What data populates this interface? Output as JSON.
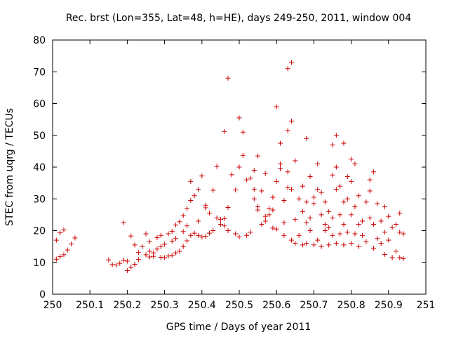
{
  "chart_data": {
    "type": "scatter",
    "title": "Rec. brst (Lon=355, Lat=48, h=HE), days 249-250, 2011, window 004",
    "xlabel": "GPS time / Days of year 2011",
    "ylabel": "STEC from uqrg / TECUs",
    "xlim": [
      250,
      251
    ],
    "ylim": [
      0,
      80
    ],
    "x_ticks": [
      "250",
      "250.1",
      "250.2",
      "250.3",
      "250.4",
      "250.5",
      "250.6",
      "250.7",
      "250.8",
      "250.9",
      "251"
    ],
    "y_ticks": [
      "0",
      "10",
      "20",
      "30",
      "40",
      "50",
      "60",
      "70",
      "80"
    ],
    "grid": false,
    "legend": false,
    "marker": "+",
    "color": "#cc0000",
    "points": [
      [
        250.01,
        11.0
      ],
      [
        250.01,
        17.0
      ],
      [
        250.02,
        11.8
      ],
      [
        250.02,
        19.3
      ],
      [
        250.03,
        12.4
      ],
      [
        250.03,
        20.2
      ],
      [
        250.04,
        13.9
      ],
      [
        250.05,
        15.8
      ],
      [
        250.06,
        17.7
      ],
      [
        250.15,
        10.8
      ],
      [
        250.16,
        9.3
      ],
      [
        250.17,
        9.2
      ],
      [
        250.18,
        9.7
      ],
      [
        250.19,
        10.7
      ],
      [
        250.19,
        22.5
      ],
      [
        250.2,
        7.4
      ],
      [
        250.2,
        10.4
      ],
      [
        250.21,
        8.5
      ],
      [
        250.21,
        18.3
      ],
      [
        250.22,
        9.4
      ],
      [
        250.22,
        15.5
      ],
      [
        250.23,
        10.9
      ],
      [
        250.23,
        13.1
      ],
      [
        250.24,
        15.0
      ],
      [
        250.25,
        12.4
      ],
      [
        250.25,
        19.0
      ],
      [
        250.26,
        11.7
      ],
      [
        250.26,
        13.5
      ],
      [
        250.26,
        16.5
      ],
      [
        250.27,
        11.9
      ],
      [
        250.27,
        13.0
      ],
      [
        250.28,
        14.2
      ],
      [
        250.28,
        17.8
      ],
      [
        250.29,
        11.6
      ],
      [
        250.29,
        15.0
      ],
      [
        250.29,
        18.5
      ],
      [
        250.3,
        11.5
      ],
      [
        250.3,
        15.7
      ],
      [
        250.31,
        19.0
      ],
      [
        250.31,
        12.0
      ],
      [
        250.32,
        16.7
      ],
      [
        250.32,
        19.8
      ],
      [
        250.32,
        12.2
      ],
      [
        250.33,
        13.0
      ],
      [
        250.33,
        17.5
      ],
      [
        250.33,
        21.8
      ],
      [
        250.34,
        22.8
      ],
      [
        250.34,
        13.5
      ],
      [
        250.35,
        19.7
      ],
      [
        250.35,
        24.7
      ],
      [
        250.35,
        15.0
      ],
      [
        250.36,
        21.5
      ],
      [
        250.36,
        27.0
      ],
      [
        250.36,
        16.8
      ],
      [
        250.37,
        35.5
      ],
      [
        250.37,
        29.5
      ],
      [
        250.37,
        18.5
      ],
      [
        250.38,
        19.2
      ],
      [
        250.38,
        31.0
      ],
      [
        250.39,
        18.5
      ],
      [
        250.39,
        23.0
      ],
      [
        250.39,
        33.0
      ],
      [
        250.4,
        37.2
      ],
      [
        250.4,
        18.0
      ],
      [
        250.41,
        28.0
      ],
      [
        250.41,
        18.2
      ],
      [
        250.41,
        27.2
      ],
      [
        250.42,
        19.2
      ],
      [
        250.42,
        25.5
      ],
      [
        250.43,
        32.7
      ],
      [
        250.43,
        20.0
      ],
      [
        250.44,
        40.2
      ],
      [
        250.44,
        24.0
      ],
      [
        250.45,
        22.0
      ],
      [
        250.45,
        23.5
      ],
      [
        250.46,
        51.2
      ],
      [
        250.46,
        21.5
      ],
      [
        250.46,
        23.8
      ],
      [
        250.47,
        27.3
      ],
      [
        250.47,
        20.0
      ],
      [
        250.47,
        68.0
      ],
      [
        250.48,
        37.6
      ],
      [
        250.49,
        32.8
      ],
      [
        250.49,
        19.0
      ],
      [
        250.5,
        55.5
      ],
      [
        250.5,
        40.0
      ],
      [
        250.5,
        18.0
      ],
      [
        250.51,
        51.0
      ],
      [
        250.51,
        43.7
      ],
      [
        250.52,
        18.5
      ],
      [
        250.52,
        36.0
      ],
      [
        250.53,
        36.5
      ],
      [
        250.53,
        19.5
      ],
      [
        250.54,
        33.0
      ],
      [
        250.54,
        39.0
      ],
      [
        250.54,
        30.0
      ],
      [
        250.55,
        27.5
      ],
      [
        250.55,
        26.5
      ],
      [
        250.55,
        43.5
      ],
      [
        250.56,
        32.5
      ],
      [
        250.56,
        22.0
      ],
      [
        250.57,
        24.5
      ],
      [
        250.57,
        38.0
      ],
      [
        250.57,
        23.0
      ],
      [
        250.58,
        27.0
      ],
      [
        250.58,
        25.0
      ],
      [
        250.59,
        26.5
      ],
      [
        250.59,
        20.8
      ],
      [
        250.59,
        30.5
      ],
      [
        250.6,
        59.0
      ],
      [
        250.6,
        35.5
      ],
      [
        250.6,
        20.5
      ],
      [
        250.61,
        47.5
      ],
      [
        250.61,
        41.0
      ],
      [
        250.61,
        39.5
      ],
      [
        250.62,
        18.5
      ],
      [
        250.62,
        22.5
      ],
      [
        250.62,
        29.5
      ],
      [
        250.63,
        71.0
      ],
      [
        250.63,
        51.5
      ],
      [
        250.63,
        38.5
      ],
      [
        250.63,
        33.5
      ],
      [
        250.64,
        73.0
      ],
      [
        250.64,
        54.5
      ],
      [
        250.64,
        17.0
      ],
      [
        250.64,
        33.0
      ],
      [
        250.65,
        42.0
      ],
      [
        250.65,
        23.5
      ],
      [
        250.65,
        16.0
      ],
      [
        250.66,
        30.0
      ],
      [
        250.66,
        18.5
      ],
      [
        250.67,
        34.0
      ],
      [
        250.67,
        26.0
      ],
      [
        250.67,
        15.5
      ],
      [
        250.68,
        29.0
      ],
      [
        250.68,
        49.0
      ],
      [
        250.68,
        22.5
      ],
      [
        250.68,
        16.0
      ],
      [
        250.69,
        24.0
      ],
      [
        250.69,
        37.0
      ],
      [
        250.69,
        20.0
      ],
      [
        250.7,
        15.5
      ],
      [
        250.7,
        30.5
      ],
      [
        250.7,
        28.5
      ],
      [
        250.71,
        41.0
      ],
      [
        250.71,
        33.0
      ],
      [
        250.71,
        17.0
      ],
      [
        250.72,
        25.0
      ],
      [
        250.72,
        32.0
      ],
      [
        250.72,
        15.0
      ],
      [
        250.73,
        29.0
      ],
      [
        250.73,
        22.0
      ],
      [
        250.73,
        20.0
      ],
      [
        250.74,
        26.0
      ],
      [
        250.74,
        21.0
      ],
      [
        250.74,
        15.5
      ],
      [
        250.75,
        47.0
      ],
      [
        250.75,
        37.5
      ],
      [
        250.75,
        24.0
      ],
      [
        250.75,
        18.5
      ],
      [
        250.76,
        50.0
      ],
      [
        250.76,
        40.0
      ],
      [
        250.76,
        33.0
      ],
      [
        250.76,
        16.0
      ],
      [
        250.77,
        34.0
      ],
      [
        250.77,
        25.0
      ],
      [
        250.77,
        19.0
      ],
      [
        250.78,
        47.5
      ],
      [
        250.78,
        29.0
      ],
      [
        250.78,
        22.0
      ],
      [
        250.78,
        15.5
      ],
      [
        250.79,
        37.0
      ],
      [
        250.79,
        30.0
      ],
      [
        250.79,
        19.5
      ],
      [
        250.8,
        42.5
      ],
      [
        250.8,
        35.5
      ],
      [
        250.8,
        25.0
      ],
      [
        250.8,
        16.0
      ],
      [
        250.81,
        41.0
      ],
      [
        250.81,
        27.5
      ],
      [
        250.81,
        19.0
      ],
      [
        250.82,
        31.0
      ],
      [
        250.82,
        22.0
      ],
      [
        250.82,
        15.0
      ],
      [
        250.83,
        23.0
      ],
      [
        250.83,
        18.5
      ],
      [
        250.84,
        29.0
      ],
      [
        250.84,
        16.5
      ],
      [
        250.85,
        36.0
      ],
      [
        250.85,
        32.5
      ],
      [
        250.85,
        24.0
      ],
      [
        250.86,
        38.5
      ],
      [
        250.86,
        22.0
      ],
      [
        250.86,
        14.5
      ],
      [
        250.87,
        28.5
      ],
      [
        250.87,
        17.5
      ],
      [
        250.88,
        23.0
      ],
      [
        250.88,
        16.0
      ],
      [
        250.89,
        27.5
      ],
      [
        250.89,
        19.5
      ],
      [
        250.89,
        12.5
      ],
      [
        250.9,
        24.5
      ],
      [
        250.9,
        17.0
      ],
      [
        250.91,
        21.0
      ],
      [
        250.91,
        11.5
      ],
      [
        250.92,
        22.0
      ],
      [
        250.92,
        13.5
      ],
      [
        250.93,
        25.5
      ],
      [
        250.93,
        19.5
      ],
      [
        250.93,
        11.5
      ],
      [
        250.94,
        19.0
      ],
      [
        250.94,
        11.2
      ]
    ]
  }
}
